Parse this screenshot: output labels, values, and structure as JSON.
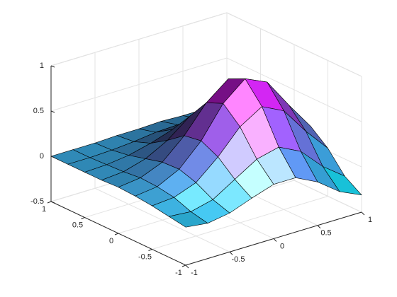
{
  "chart_data": {
    "type": "surface",
    "x": [
      -1,
      -0.75,
      -0.5,
      -0.25,
      0,
      0.25,
      0.5,
      0.75,
      1
    ],
    "y": [
      -1,
      -0.75,
      -0.5,
      -0.25,
      0,
      0.25,
      0.5,
      0.75,
      1
    ],
    "z": [
      [
        -0.08,
        -0.11,
        -0.07,
        0.02,
        0.1,
        0.1,
        -0.02,
        -0.2,
        -0.31
      ],
      [
        -0.05,
        -0.07,
        -0.01,
        0.14,
        0.29,
        0.35,
        0.23,
        -0.01,
        -0.19
      ],
      [
        -0.02,
        0.0,
        0.09,
        0.3,
        0.56,
        0.71,
        0.59,
        0.29,
        0.03
      ],
      [
        0.0,
        0.03,
        0.15,
        0.39,
        0.73,
        0.93,
        0.82,
        0.49,
        0.18
      ],
      [
        0.01,
        0.04,
        0.14,
        0.36,
        0.65,
        0.84,
        0.75,
        0.47,
        0.2
      ],
      [
        0.0,
        0.02,
        0.09,
        0.22,
        0.41,
        0.53,
        0.47,
        0.3,
        0.13
      ],
      [
        0.0,
        0.01,
        0.04,
        0.1,
        0.18,
        0.23,
        0.21,
        0.13,
        0.06
      ],
      [
        0.0,
        0.0,
        0.01,
        0.03,
        0.06,
        0.07,
        0.06,
        0.04,
        0.02
      ],
      [
        0.0,
        0.0,
        0.0,
        0.01,
        0.01,
        0.02,
        0.01,
        0.01,
        0.0
      ]
    ],
    "xlim": [
      -1,
      1
    ],
    "ylim": [
      -1,
      1
    ],
    "zlim": [
      -0.5,
      1
    ],
    "xticks": [
      -1,
      -0.5,
      0,
      0.5,
      1
    ],
    "yticks": [
      -1,
      -0.5,
      0,
      0.5,
      1
    ],
    "zticks": [
      -0.5,
      0,
      0.5,
      1
    ],
    "grid": true,
    "colormap": [
      "#00ffff",
      "#ff00ff"
    ],
    "edgecolor": "#000000"
  }
}
